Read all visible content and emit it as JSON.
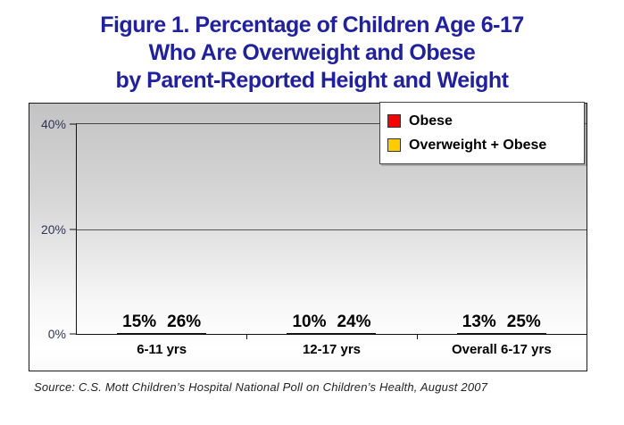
{
  "title": {
    "line1": "Figure 1. Percentage of Children Age 6-17",
    "line2": "Who Are Overweight and Obese",
    "line3": "by Parent-Reported Height and Weight"
  },
  "legend": {
    "items": [
      {
        "label": "Obese",
        "color": "#fb0000"
      },
      {
        "label": "Overweight + Obese",
        "color": "#ffcc00"
      }
    ]
  },
  "chart_data": {
    "type": "bar",
    "title": "Figure 1. Percentage of Children Age 6-17 Who Are Overweight and Obese by Parent-Reported Height and Weight",
    "categories": [
      "6-11 yrs",
      "12-17 yrs",
      "Overall 6-17 yrs"
    ],
    "series": [
      {
        "name": "Obese",
        "color": "#fb0000",
        "values": [
          15,
          10,
          13
        ]
      },
      {
        "name": "Overweight + Obese",
        "color": "#ffcc00",
        "values": [
          26,
          24,
          25
        ]
      }
    ],
    "value_label_suffix": "%",
    "xlabel": "",
    "ylabel": "",
    "ylim": [
      0,
      40
    ],
    "yticks": [
      "40%",
      "20%",
      "0%"
    ],
    "grid": true,
    "legend_position": "top-right"
  },
  "source": "Source: C.S. Mott Children’s Hospital National Poll on Children’s Health, August 2007"
}
